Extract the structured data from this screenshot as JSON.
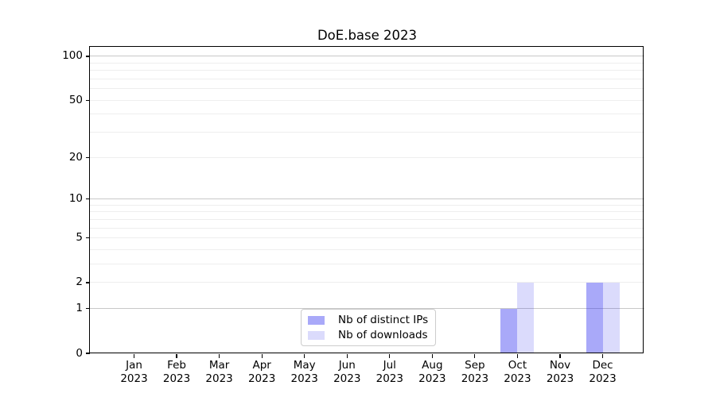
{
  "chart_data": {
    "type": "bar",
    "title": "DoE.base 2023",
    "x": {
      "months": [
        "Jan",
        "Feb",
        "Mar",
        "Apr",
        "May",
        "Jun",
        "Jul",
        "Aug",
        "Sep",
        "Oct",
        "Nov",
        "Dec"
      ],
      "year": "2023"
    },
    "y": {
      "tick_labels": [
        "0",
        "1",
        "2",
        "5",
        "10",
        "20",
        "50",
        "100"
      ],
      "tick_values": [
        0,
        1,
        2,
        5,
        10,
        20,
        50,
        100
      ],
      "scale": "log1p",
      "ylim": [
        0,
        116
      ],
      "major_grid_values": [
        1,
        10,
        100
      ],
      "minor_grid_values": [
        2,
        3,
        4,
        5,
        6,
        7,
        8,
        9,
        20,
        30,
        40,
        50,
        60,
        70,
        80,
        90
      ]
    },
    "series": [
      {
        "name": "Nb of distinct IPs",
        "color": "rgba(40,40,240,0.40)",
        "values": [
          0,
          0,
          0,
          0,
          0,
          0,
          0,
          0,
          0,
          1,
          0,
          2
        ]
      },
      {
        "name": "Nb of downloads",
        "color": "rgba(40,40,240,0.17)",
        "values": [
          0,
          0,
          0,
          0,
          0,
          0,
          0,
          0,
          0,
          2,
          0,
          2
        ]
      }
    ],
    "legend_position": "lower center",
    "grid": true,
    "colors": {
      "grid_major": "#c8c8c8",
      "grid_minor": "#eeeeee",
      "spine": "#000000",
      "background": "#ffffff",
      "text": "#000000"
    }
  }
}
